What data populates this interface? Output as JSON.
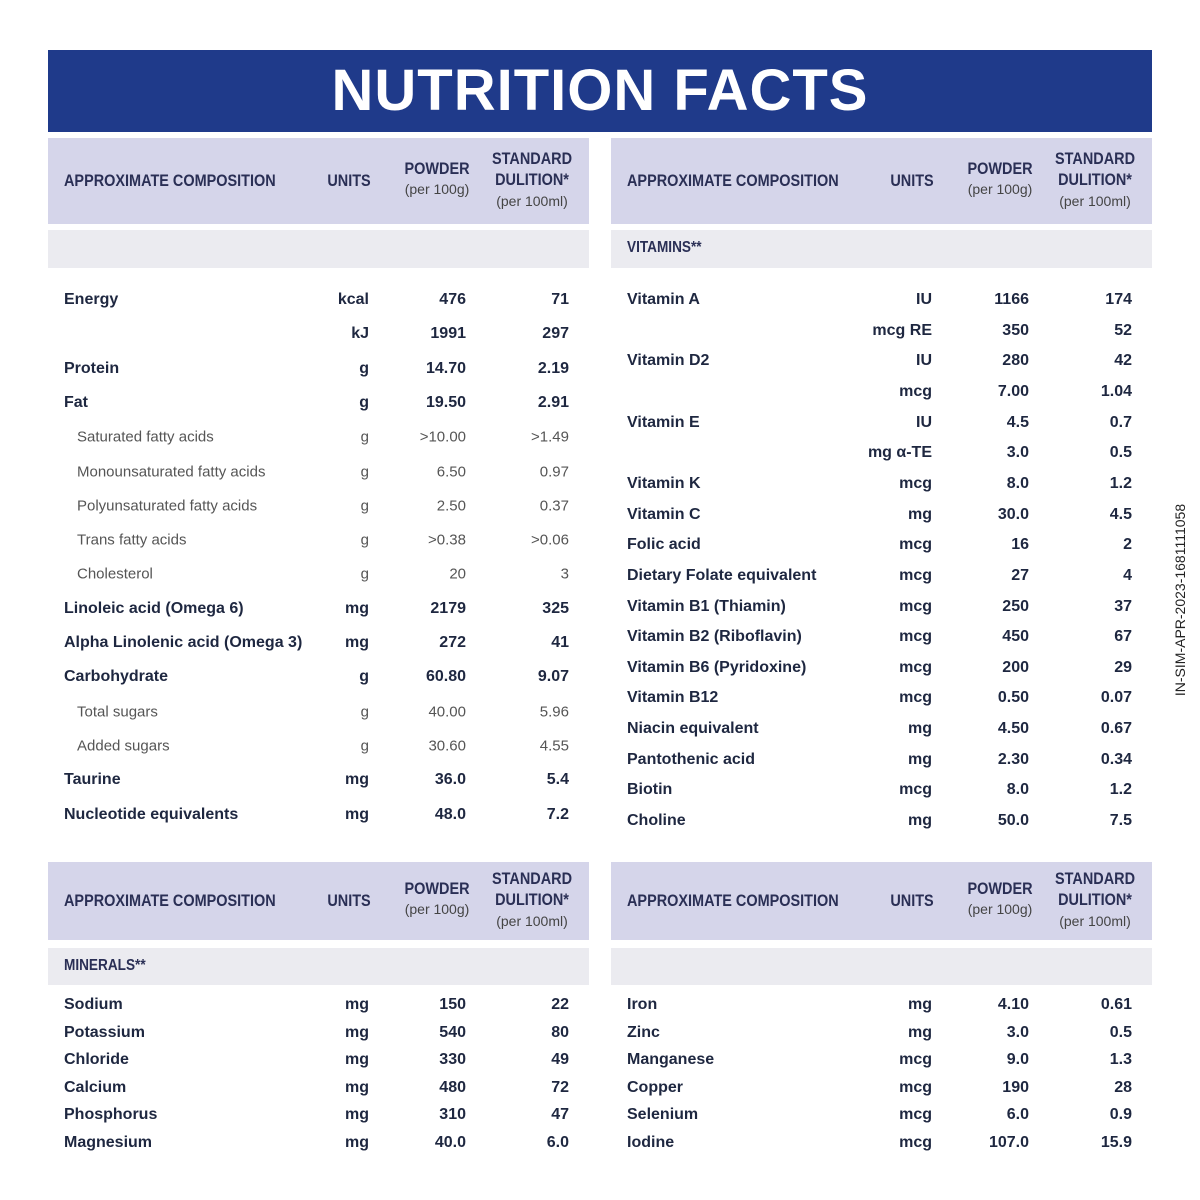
{
  "title": "NUTRITION FACTS",
  "side_code": "IN-SIM-APR-2023-1681111058",
  "panels": [
    {
      "header": {
        "composition": "APPROXIMATE COMPOSITION",
        "units": "UNITS",
        "powder": "POWDER",
        "powder_sub": "(per 100g)",
        "dilution_1": "STANDARD",
        "dilution_2": "DULITION*",
        "dilution_sub": "(per 100ml)"
      },
      "rows": [
        {
          "name": "Energy",
          "unit": "kcal",
          "powder": "476",
          "dilution": "71"
        },
        {
          "unit": "kJ",
          "powder": "1991",
          "dilution": "297"
        },
        {
          "name": "Protein",
          "unit": "g",
          "powder": "14.70",
          "dilution": "2.19"
        },
        {
          "name": "Fat",
          "unit": "g",
          "powder": "19.50",
          "dilution": "2.91"
        },
        {
          "name": "Saturated fatty acids",
          "unit": "g",
          "powder": ">10.00",
          "dilution": ">1.49",
          "indent": true
        },
        {
          "name": "Monounsaturated fatty acids",
          "unit": "g",
          "powder": "6.50",
          "dilution": "0.97",
          "indent": true
        },
        {
          "name": "Polyunsaturated fatty acids",
          "unit": "g",
          "powder": "2.50",
          "dilution": "0.37",
          "indent": true
        },
        {
          "name": "Trans fatty acids",
          "unit": "g",
          "powder": ">0.38",
          "dilution": ">0.06",
          "indent": true
        },
        {
          "name": "Cholesterol",
          "unit": "g",
          "powder": "20",
          "dilution": "3",
          "indent": true
        },
        {
          "name": "Linoleic acid (Omega 6)",
          "unit": "mg",
          "powder": "2179",
          "dilution": "325"
        },
        {
          "name": "Alpha Linolenic acid (Omega 3)",
          "unit": "mg",
          "powder": "272",
          "dilution": "41"
        },
        {
          "name": "Carbohydrate",
          "unit": "g",
          "powder": "60.80",
          "dilution": "9.07"
        },
        {
          "name": "Total sugars",
          "unit": "g",
          "powder": "40.00",
          "dilution": "5.96",
          "indent": true
        },
        {
          "name": "Added sugars",
          "unit": "g",
          "powder": "30.60",
          "dilution": "4.55",
          "indent": true
        },
        {
          "name": "Taurine",
          "unit": "mg",
          "powder": "36.0",
          "dilution": "5.4"
        },
        {
          "name": "Nucleotide equivalents",
          "unit": "mg",
          "powder": "48.0",
          "dilution": "7.2"
        }
      ]
    },
    {
      "header": {
        "composition": "APPROXIMATE COMPOSITION",
        "units": "UNITS",
        "powder": "POWDER",
        "powder_sub": "(per 100g)",
        "dilution_1": "STANDARD",
        "dilution_2": "DULITION*",
        "dilution_sub": "(per 100ml)"
      },
      "section": "VITAMINS**",
      "rows": [
        {
          "name": "Vitamin A",
          "unit": "IU",
          "powder": "1166",
          "dilution": "174"
        },
        {
          "unit": "mcg RE",
          "powder": "350",
          "dilution": "52"
        },
        {
          "name": "Vitamin D2",
          "unit": "IU",
          "powder": "280",
          "dilution": "42"
        },
        {
          "unit": "mcg",
          "powder": "7.00",
          "dilution": "1.04"
        },
        {
          "name": "Vitamin E",
          "unit": "IU",
          "powder": "4.5",
          "dilution": "0.7"
        },
        {
          "unit": "mg α-TE",
          "powder": "3.0",
          "dilution": "0.5"
        },
        {
          "name": "Vitamin K",
          "unit": "mcg",
          "powder": "8.0",
          "dilution": "1.2"
        },
        {
          "name": "Vitamin C",
          "unit": "mg",
          "powder": "30.0",
          "dilution": "4.5"
        },
        {
          "name": "Folic acid",
          "unit": "mcg",
          "powder": "16",
          "dilution": "2"
        },
        {
          "name": "Dietary Folate equivalent",
          "unit": "mcg",
          "powder": "27",
          "dilution": "4"
        },
        {
          "name": "Vitamin B1 (Thiamin)",
          "unit": "mcg",
          "powder": "250",
          "dilution": "37"
        },
        {
          "name": "Vitamin B2 (Riboflavin)",
          "unit": "mcg",
          "powder": "450",
          "dilution": "67"
        },
        {
          "name": "Vitamin B6 (Pyridoxine)",
          "unit": "mcg",
          "powder": "200",
          "dilution": "29"
        },
        {
          "name": "Vitamin B12",
          "unit": "mcg",
          "powder": "0.50",
          "dilution": "0.07"
        },
        {
          "name": "Niacin equivalent",
          "unit": "mg",
          "powder": "4.50",
          "dilution": "0.67"
        },
        {
          "name": "Pantothenic acid",
          "unit": "mg",
          "powder": "2.30",
          "dilution": "0.34"
        },
        {
          "name": "Biotin",
          "unit": "mcg",
          "powder": "8.0",
          "dilution": "1.2"
        },
        {
          "name": "Choline",
          "unit": "mg",
          "powder": "50.0",
          "dilution": "7.5"
        }
      ]
    },
    {
      "header": {
        "composition": "APPROXIMATE COMPOSITION",
        "units": "UNITS",
        "powder": "POWDER",
        "powder_sub": "(per 100g)",
        "dilution_1": "STANDARD",
        "dilution_2": "DULITION*",
        "dilution_sub": "(per 100ml)"
      },
      "section": "MINERALS**",
      "rows": [
        {
          "name": "Sodium",
          "unit": "mg",
          "powder": "150",
          "dilution": "22"
        },
        {
          "name": "Potassium",
          "unit": "mg",
          "powder": "540",
          "dilution": "80"
        },
        {
          "name": "Chloride",
          "unit": "mg",
          "powder": "330",
          "dilution": "49"
        },
        {
          "name": "Calcium",
          "unit": "mg",
          "powder": "480",
          "dilution": "72"
        },
        {
          "name": "Phosphorus",
          "unit": "mg",
          "powder": "310",
          "dilution": "47"
        },
        {
          "name": "Magnesium",
          "unit": "mg",
          "powder": "40.0",
          "dilution": "6.0"
        }
      ]
    },
    {
      "header": {
        "composition": "APPROXIMATE COMPOSITION",
        "units": "UNITS",
        "powder": "POWDER",
        "powder_sub": "(per 100g)",
        "dilution_1": "STANDARD",
        "dilution_2": "DULITION*",
        "dilution_sub": "(per 100ml)"
      },
      "rows": [
        {
          "name": "Iron",
          "unit": "mg",
          "powder": "4.10",
          "dilution": "0.61"
        },
        {
          "name": "Zinc",
          "unit": "mg",
          "powder": "3.0",
          "dilution": "0.5"
        },
        {
          "name": "Manganese",
          "unit": "mcg",
          "powder": "9.0",
          "dilution": "1.3"
        },
        {
          "name": "Copper",
          "unit": "mcg",
          "powder": "190",
          "dilution": "28"
        },
        {
          "name": "Selenium",
          "unit": "mcg",
          "powder": "6.0",
          "dilution": "0.9"
        },
        {
          "name": "Iodine",
          "unit": "mcg",
          "powder": "107.0",
          "dilution": "15.9"
        }
      ]
    }
  ]
}
